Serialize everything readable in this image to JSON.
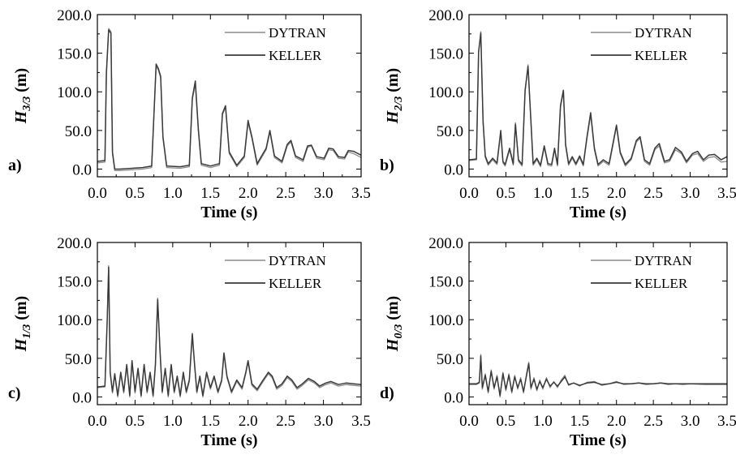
{
  "x_axis_title": "Time (s)",
  "legend_labels": [
    "DYTRAN",
    "KELLER"
  ],
  "colors": {
    "dytran": "#8a8a8a",
    "keller": "#3a3a3a"
  },
  "chart_data": [
    {
      "type": "line",
      "panel_label": "a)",
      "ylabel": {
        "main": "H",
        "sub": "3/3",
        "unit": " (m)"
      },
      "xlabel": "Time (s)",
      "xlim": [
        0.0,
        3.5
      ],
      "ylim": [
        -10,
        200
      ],
      "x_ticks": [
        "0.0",
        "0.5",
        "1.0",
        "1.5",
        "2.0",
        "2.5",
        "3.0",
        "3.5"
      ],
      "y_ticks": [
        "0.0",
        "50.0",
        "100.0",
        "150.0",
        "200.0"
      ],
      "grid": false,
      "legend": "top-right",
      "series": [
        {
          "name": "DYTRAN",
          "x": [
            0.0,
            0.1,
            0.12,
            0.15,
            0.18,
            0.2,
            0.23,
            0.3,
            0.6,
            0.72,
            0.76,
            0.78,
            0.81,
            0.84,
            0.87,
            0.92,
            1.1,
            1.22,
            1.26,
            1.3,
            1.34,
            1.38,
            1.5,
            1.62,
            1.66,
            1.7,
            1.75,
            1.85,
            1.95,
            2.0,
            2.05,
            2.12,
            2.24,
            2.29,
            2.35,
            2.45,
            2.52,
            2.57,
            2.63,
            2.73,
            2.79,
            2.84,
            2.91,
            3.01,
            3.07,
            3.13,
            3.2,
            3.28,
            3.33,
            3.4,
            3.5
          ],
          "y": [
            8,
            9,
            120,
            182,
            178,
            20,
            -2,
            -2,
            0,
            2,
            90,
            133,
            128,
            118,
            40,
            2,
            1,
            3,
            90,
            110,
            50,
            5,
            2,
            5,
            70,
            80,
            20,
            3,
            15,
            60,
            40,
            5,
            25,
            48,
            15,
            8,
            30,
            35,
            15,
            10,
            28,
            30,
            14,
            12,
            25,
            24,
            14,
            13,
            22,
            20,
            15
          ]
        },
        {
          "name": "KELLER",
          "x": [
            0.0,
            0.1,
            0.12,
            0.15,
            0.18,
            0.2,
            0.23,
            0.3,
            0.6,
            0.72,
            0.76,
            0.78,
            0.81,
            0.84,
            0.87,
            0.92,
            1.1,
            1.22,
            1.26,
            1.3,
            1.34,
            1.38,
            1.5,
            1.62,
            1.66,
            1.7,
            1.75,
            1.85,
            1.95,
            2.0,
            2.05,
            2.12,
            2.24,
            2.29,
            2.35,
            2.45,
            2.52,
            2.57,
            2.63,
            2.73,
            2.79,
            2.84,
            2.91,
            3.01,
            3.07,
            3.13,
            3.2,
            3.28,
            3.33,
            3.4,
            3.5
          ],
          "y": [
            10,
            11,
            125,
            180,
            176,
            22,
            0,
            0,
            2,
            4,
            92,
            136,
            130,
            120,
            42,
            4,
            3,
            5,
            92,
            114,
            52,
            7,
            4,
            7,
            72,
            82,
            22,
            5,
            17,
            63,
            42,
            7,
            27,
            50,
            17,
            10,
            32,
            37,
            17,
            12,
            30,
            31,
            16,
            14,
            27,
            26,
            16,
            15,
            24,
            23,
            18
          ]
        }
      ]
    },
    {
      "type": "line",
      "panel_label": "b)",
      "ylabel": {
        "main": "H",
        "sub": "2/3",
        "unit": " (m)"
      },
      "xlabel": "Time (s)",
      "xlim": [
        0.0,
        3.5
      ],
      "ylim": [
        -10,
        200
      ],
      "x_ticks": [
        "0.0",
        "0.5",
        "1.0",
        "1.5",
        "2.0",
        "2.5",
        "3.0",
        "3.5"
      ],
      "y_ticks": [
        "0.0",
        "50.0",
        "100.0",
        "150.0",
        "200.0"
      ],
      "grid": false,
      "legend": "top-right",
      "series": [
        {
          "name": "DYTRAN",
          "x": [
            0.0,
            0.1,
            0.13,
            0.16,
            0.19,
            0.22,
            0.26,
            0.32,
            0.38,
            0.43,
            0.46,
            0.49,
            0.55,
            0.6,
            0.63,
            0.67,
            0.72,
            0.76,
            0.8,
            0.84,
            0.87,
            0.92,
            0.97,
            1.02,
            1.07,
            1.12,
            1.16,
            1.2,
            1.24,
            1.28,
            1.31,
            1.35,
            1.4,
            1.45,
            1.5,
            1.55,
            1.6,
            1.65,
            1.7,
            1.75,
            1.82,
            1.9,
            1.96,
            2.0,
            2.05,
            2.12,
            2.2,
            2.27,
            2.32,
            2.38,
            2.45,
            2.52,
            2.58,
            2.65,
            2.72,
            2.8,
            2.88,
            2.95,
            3.03,
            3.1,
            3.18,
            3.25,
            3.33,
            3.42,
            3.5
          ],
          "y": [
            11,
            12,
            150,
            178,
            60,
            15,
            5,
            12,
            6,
            48,
            8,
            4,
            25,
            5,
            60,
            10,
            4,
            100,
            135,
            60,
            5,
            12,
            3,
            28,
            5,
            4,
            25,
            4,
            80,
            100,
            30,
            5,
            14,
            5,
            15,
            4,
            40,
            70,
            25,
            4,
            10,
            5,
            35,
            55,
            20,
            4,
            12,
            35,
            40,
            10,
            5,
            25,
            30,
            8,
            10,
            25,
            20,
            8,
            18,
            20,
            10,
            15,
            16,
            9,
            10
          ]
        },
        {
          "name": "KELLER",
          "x": [
            0.0,
            0.1,
            0.13,
            0.16,
            0.19,
            0.22,
            0.26,
            0.32,
            0.38,
            0.43,
            0.46,
            0.49,
            0.55,
            0.6,
            0.63,
            0.67,
            0.72,
            0.76,
            0.8,
            0.84,
            0.87,
            0.92,
            0.97,
            1.02,
            1.07,
            1.12,
            1.16,
            1.2,
            1.24,
            1.28,
            1.31,
            1.35,
            1.4,
            1.45,
            1.5,
            1.55,
            1.6,
            1.65,
            1.7,
            1.75,
            1.82,
            1.9,
            1.96,
            2.0,
            2.05,
            2.12,
            2.2,
            2.27,
            2.32,
            2.38,
            2.45,
            2.52,
            2.58,
            2.65,
            2.72,
            2.8,
            2.88,
            2.95,
            3.03,
            3.1,
            3.18,
            3.25,
            3.33,
            3.42,
            3.5
          ],
          "y": [
            12,
            13,
            152,
            176,
            62,
            17,
            7,
            14,
            8,
            50,
            10,
            6,
            27,
            7,
            58,
            12,
            6,
            102,
            133,
            62,
            7,
            14,
            5,
            30,
            7,
            6,
            27,
            6,
            82,
            102,
            32,
            7,
            16,
            7,
            17,
            6,
            42,
            73,
            27,
            6,
            12,
            7,
            37,
            57,
            22,
            6,
            14,
            37,
            42,
            12,
            7,
            27,
            33,
            10,
            12,
            28,
            22,
            10,
            20,
            23,
            12,
            18,
            19,
            12,
            16
          ]
        }
      ]
    },
    {
      "type": "line",
      "panel_label": "c)",
      "ylabel": {
        "main": "H",
        "sub": "1/3",
        "unit": " (m)"
      },
      "xlabel": "Time (s)",
      "xlim": [
        0.0,
        3.5
      ],
      "ylim": [
        -10,
        200
      ],
      "x_ticks": [
        "0.0",
        "0.5",
        "1.0",
        "1.5",
        "2.0",
        "2.5",
        "3.0",
        "3.5"
      ],
      "y_ticks": [
        "0.0",
        "50.0",
        "100.0",
        "150.0",
        "200.0"
      ],
      "grid": false,
      "legend": "top-right",
      "series": [
        {
          "name": "DYTRAN",
          "x": [
            0.0,
            0.1,
            0.13,
            0.15,
            0.17,
            0.2,
            0.23,
            0.27,
            0.31,
            0.35,
            0.39,
            0.43,
            0.46,
            0.5,
            0.54,
            0.58,
            0.62,
            0.66,
            0.7,
            0.74,
            0.77,
            0.8,
            0.83,
            0.86,
            0.9,
            0.94,
            0.98,
            1.02,
            1.06,
            1.1,
            1.14,
            1.18,
            1.22,
            1.26,
            1.29,
            1.32,
            1.36,
            1.4,
            1.45,
            1.5,
            1.55,
            1.6,
            1.65,
            1.68,
            1.72,
            1.78,
            1.85,
            1.92,
            1.97,
            2.0,
            2.05,
            2.12,
            2.2,
            2.27,
            2.32,
            2.38,
            2.45,
            2.52,
            2.58,
            2.65,
            2.72,
            2.8,
            2.88,
            2.95,
            3.03,
            3.1,
            3.2,
            3.3,
            3.4,
            3.5
          ],
          "y": [
            12,
            13,
            100,
            170,
            30,
            5,
            28,
            0,
            30,
            5,
            40,
            0,
            45,
            5,
            35,
            0,
            40,
            5,
            30,
            0,
            40,
            128,
            60,
            5,
            35,
            0,
            40,
            5,
            25,
            0,
            30,
            5,
            20,
            80,
            40,
            5,
            25,
            0,
            30,
            10,
            25,
            5,
            20,
            55,
            25,
            5,
            20,
            10,
            30,
            45,
            15,
            8,
            20,
            30,
            25,
            10,
            15,
            25,
            20,
            10,
            15,
            22,
            18,
            12,
            16,
            18,
            14,
            16,
            15,
            14
          ]
        },
        {
          "name": "KELLER",
          "x": [
            0.0,
            0.1,
            0.13,
            0.15,
            0.17,
            0.2,
            0.23,
            0.27,
            0.31,
            0.35,
            0.39,
            0.43,
            0.46,
            0.5,
            0.54,
            0.58,
            0.62,
            0.66,
            0.7,
            0.74,
            0.77,
            0.8,
            0.83,
            0.86,
            0.9,
            0.94,
            0.98,
            1.02,
            1.06,
            1.1,
            1.14,
            1.18,
            1.22,
            1.26,
            1.29,
            1.32,
            1.36,
            1.4,
            1.45,
            1.5,
            1.55,
            1.6,
            1.65,
            1.68,
            1.72,
            1.78,
            1.85,
            1.92,
            1.97,
            2.0,
            2.05,
            2.12,
            2.2,
            2.27,
            2.32,
            2.38,
            2.45,
            2.52,
            2.58,
            2.65,
            2.72,
            2.8,
            2.88,
            2.95,
            3.03,
            3.1,
            3.2,
            3.3,
            3.4,
            3.5
          ],
          "y": [
            13,
            14,
            98,
            168,
            32,
            7,
            30,
            2,
            32,
            7,
            42,
            2,
            47,
            7,
            37,
            2,
            42,
            7,
            32,
            2,
            42,
            126,
            62,
            7,
            37,
            2,
            42,
            7,
            27,
            2,
            32,
            7,
            22,
            82,
            42,
            7,
            27,
            2,
            32,
            12,
            27,
            7,
            22,
            57,
            27,
            7,
            22,
            12,
            32,
            47,
            17,
            10,
            22,
            32,
            27,
            12,
            17,
            27,
            22,
            12,
            17,
            24,
            20,
            14,
            18,
            20,
            16,
            18,
            17,
            16
          ]
        }
      ]
    },
    {
      "type": "line",
      "panel_label": "d)",
      "ylabel": {
        "main": "H",
        "sub": "0/3",
        "unit": " (m)"
      },
      "xlabel": "Time (s)",
      "xlim": [
        0.0,
        3.5
      ],
      "ylim": [
        -10,
        200
      ],
      "x_ticks": [
        "0.0",
        "0.5",
        "1.0",
        "1.5",
        "2.0",
        "2.5",
        "3.0",
        "3.5"
      ],
      "y_ticks": [
        "0.0",
        "50.0",
        "100.0",
        "150.0",
        "200.0"
      ],
      "grid": false,
      "legend": "top-right",
      "series": [
        {
          "name": "DYTRAN",
          "x": [
            0.0,
            0.1,
            0.14,
            0.16,
            0.18,
            0.22,
            0.26,
            0.3,
            0.34,
            0.38,
            0.42,
            0.46,
            0.5,
            0.54,
            0.58,
            0.62,
            0.66,
            0.7,
            0.74,
            0.78,
            0.81,
            0.84,
            0.88,
            0.92,
            0.96,
            1.0,
            1.05,
            1.1,
            1.15,
            1.2,
            1.25,
            1.3,
            1.35,
            1.42,
            1.5,
            1.6,
            1.7,
            1.8,
            1.9,
            2.0,
            2.1,
            2.2,
            2.3,
            2.4,
            2.5,
            2.6,
            2.7,
            2.8,
            2.9,
            3.0,
            3.2,
            3.5
          ],
          "y": [
            16,
            16,
            18,
            55,
            10,
            30,
            5,
            35,
            10,
            28,
            0,
            32,
            8,
            30,
            5,
            28,
            10,
            25,
            5,
            30,
            45,
            10,
            25,
            8,
            22,
            10,
            25,
            12,
            20,
            12,
            22,
            28,
            15,
            18,
            14,
            19,
            20,
            15,
            17,
            20,
            16,
            17,
            18,
            16,
            17,
            18,
            16,
            17,
            16,
            17,
            16,
            16
          ]
        },
        {
          "name": "KELLER",
          "x": [
            0.0,
            0.1,
            0.14,
            0.16,
            0.18,
            0.22,
            0.26,
            0.3,
            0.34,
            0.38,
            0.42,
            0.46,
            0.5,
            0.54,
            0.58,
            0.62,
            0.66,
            0.7,
            0.74,
            0.78,
            0.81,
            0.84,
            0.88,
            0.92,
            0.96,
            1.0,
            1.05,
            1.1,
            1.15,
            1.2,
            1.25,
            1.3,
            1.35,
            1.42,
            1.5,
            1.6,
            1.7,
            1.8,
            1.9,
            2.0,
            2.1,
            2.2,
            2.3,
            2.4,
            2.5,
            2.6,
            2.7,
            2.8,
            2.9,
            3.0,
            3.2,
            3.5
          ],
          "y": [
            17,
            17,
            19,
            53,
            12,
            28,
            7,
            33,
            12,
            26,
            2,
            30,
            10,
            28,
            7,
            26,
            12,
            23,
            7,
            28,
            43,
            12,
            23,
            10,
            20,
            12,
            23,
            14,
            19,
            14,
            20,
            26,
            16,
            18,
            15,
            18,
            19,
            16,
            17,
            19,
            17,
            17,
            18,
            17,
            17,
            18,
            17,
            17,
            17,
            17,
            17,
            17
          ]
        }
      ]
    }
  ]
}
